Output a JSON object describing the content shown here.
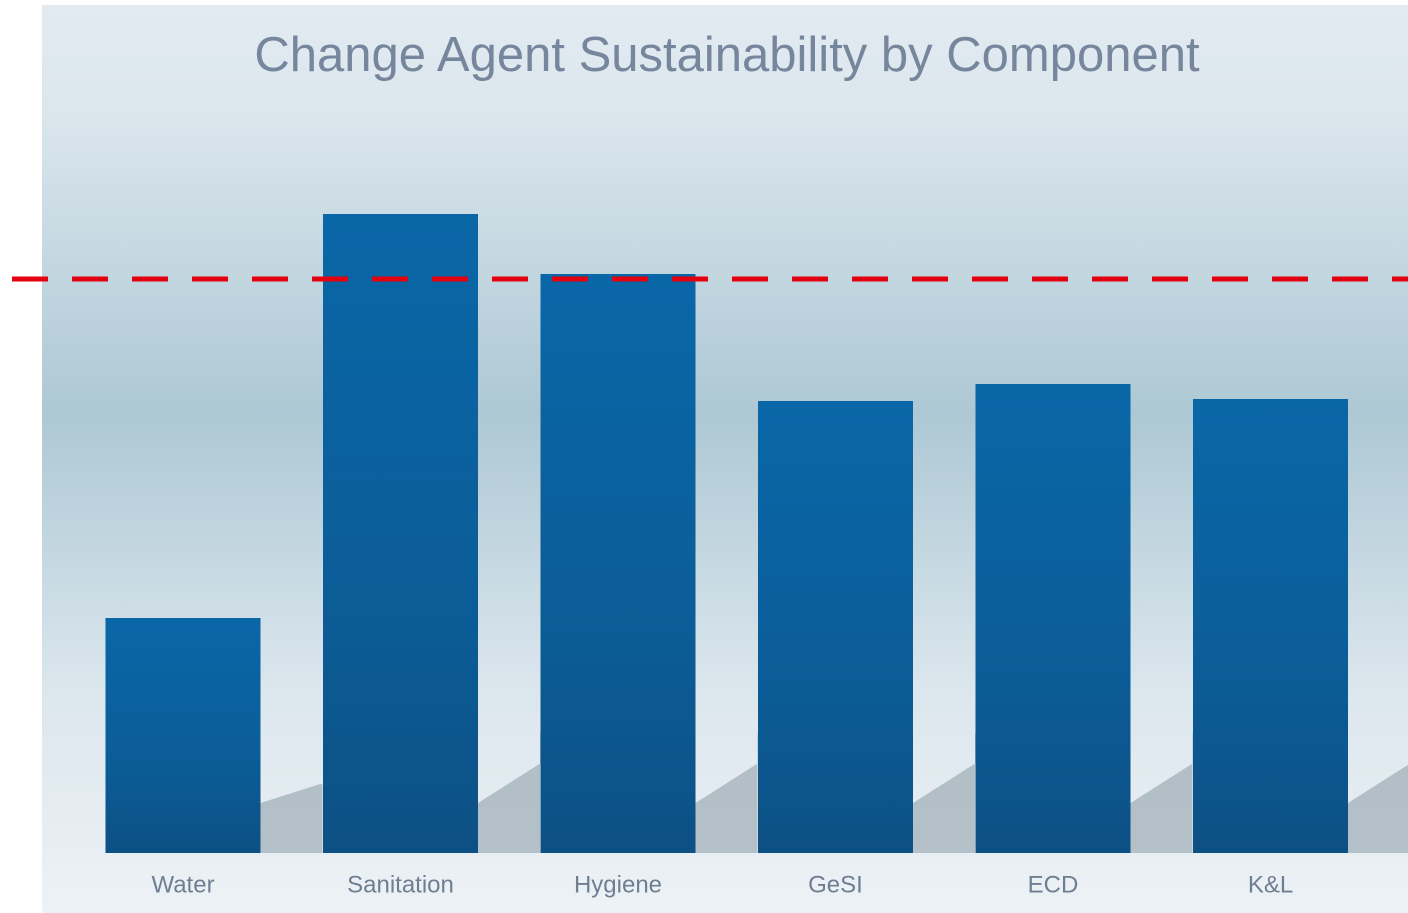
{
  "chart_data": {
    "type": "bar",
    "title": "Change Agent Sustainability by Component",
    "categories": [
      "Water",
      "Sanitation",
      "Hygiene",
      "GeSI",
      "ECD",
      "K&L"
    ],
    "values": [
      235,
      639,
      579,
      452,
      469,
      454
    ],
    "color": "#0b62a0",
    "ylim": [
      0,
      700
    ],
    "reference_line": {
      "value": 574,
      "color": "#e3000f",
      "style": "dashed"
    }
  }
}
